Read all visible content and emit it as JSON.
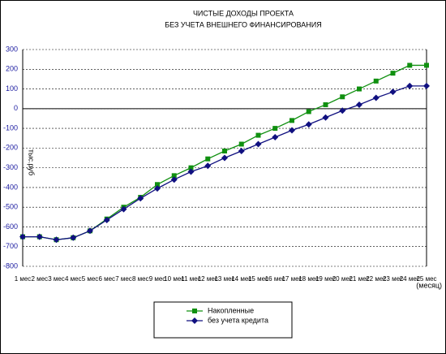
{
  "chart_data": {
    "type": "line",
    "title": "ЧИСТЫЕ ДОХОДЫ ПРОЕКТА",
    "subtitle": "БЕЗ УЧЕТА ВНЕШНЕГО ФИНАНСИРОВАНИЯ",
    "y_label": "тыс.руб",
    "x_label": "(месяц)",
    "categories": [
      "1 мес",
      "2 мес",
      "3 мес",
      "4 мес",
      "5 мес",
      "6 мес",
      "7 мес",
      "8 мес",
      "9 мес",
      "10 мес",
      "11 мес",
      "12 мес",
      "13 мес",
      "14 мес",
      "15 мес",
      "16 мес",
      "17 мес",
      "18 мес",
      "19 мес",
      "20 мес",
      "21 мес",
      "22 мес",
      "23 мес",
      "24 мес",
      "25 мес"
    ],
    "series": [
      {
        "name": "Накопленные",
        "color": "#109010",
        "marker": "square",
        "values": [
          -650,
          -650,
          -665,
          -655,
          -620,
          -560,
          -500,
          -450,
          -385,
          -340,
          -300,
          -255,
          -215,
          -180,
          -135,
          -100,
          -60,
          -15,
          20,
          60,
          100,
          140,
          180,
          220,
          220
        ]
      },
      {
        "name": "без учета кредита",
        "color": "#101080",
        "marker": "diamond",
        "values": [
          -650,
          -650,
          -665,
          -655,
          -620,
          -565,
          -510,
          -455,
          -405,
          -360,
          -320,
          -290,
          -250,
          -215,
          -180,
          -145,
          -110,
          -80,
          -45,
          -10,
          20,
          55,
          85,
          115,
          115
        ]
      }
    ],
    "ylim": [
      -800,
      300
    ],
    "yticks": [
      -800,
      -700,
      -600,
      -500,
      -400,
      -300,
      -200,
      -100,
      0,
      100,
      200,
      300
    ],
    "grid": true,
    "legend": "bottom"
  }
}
